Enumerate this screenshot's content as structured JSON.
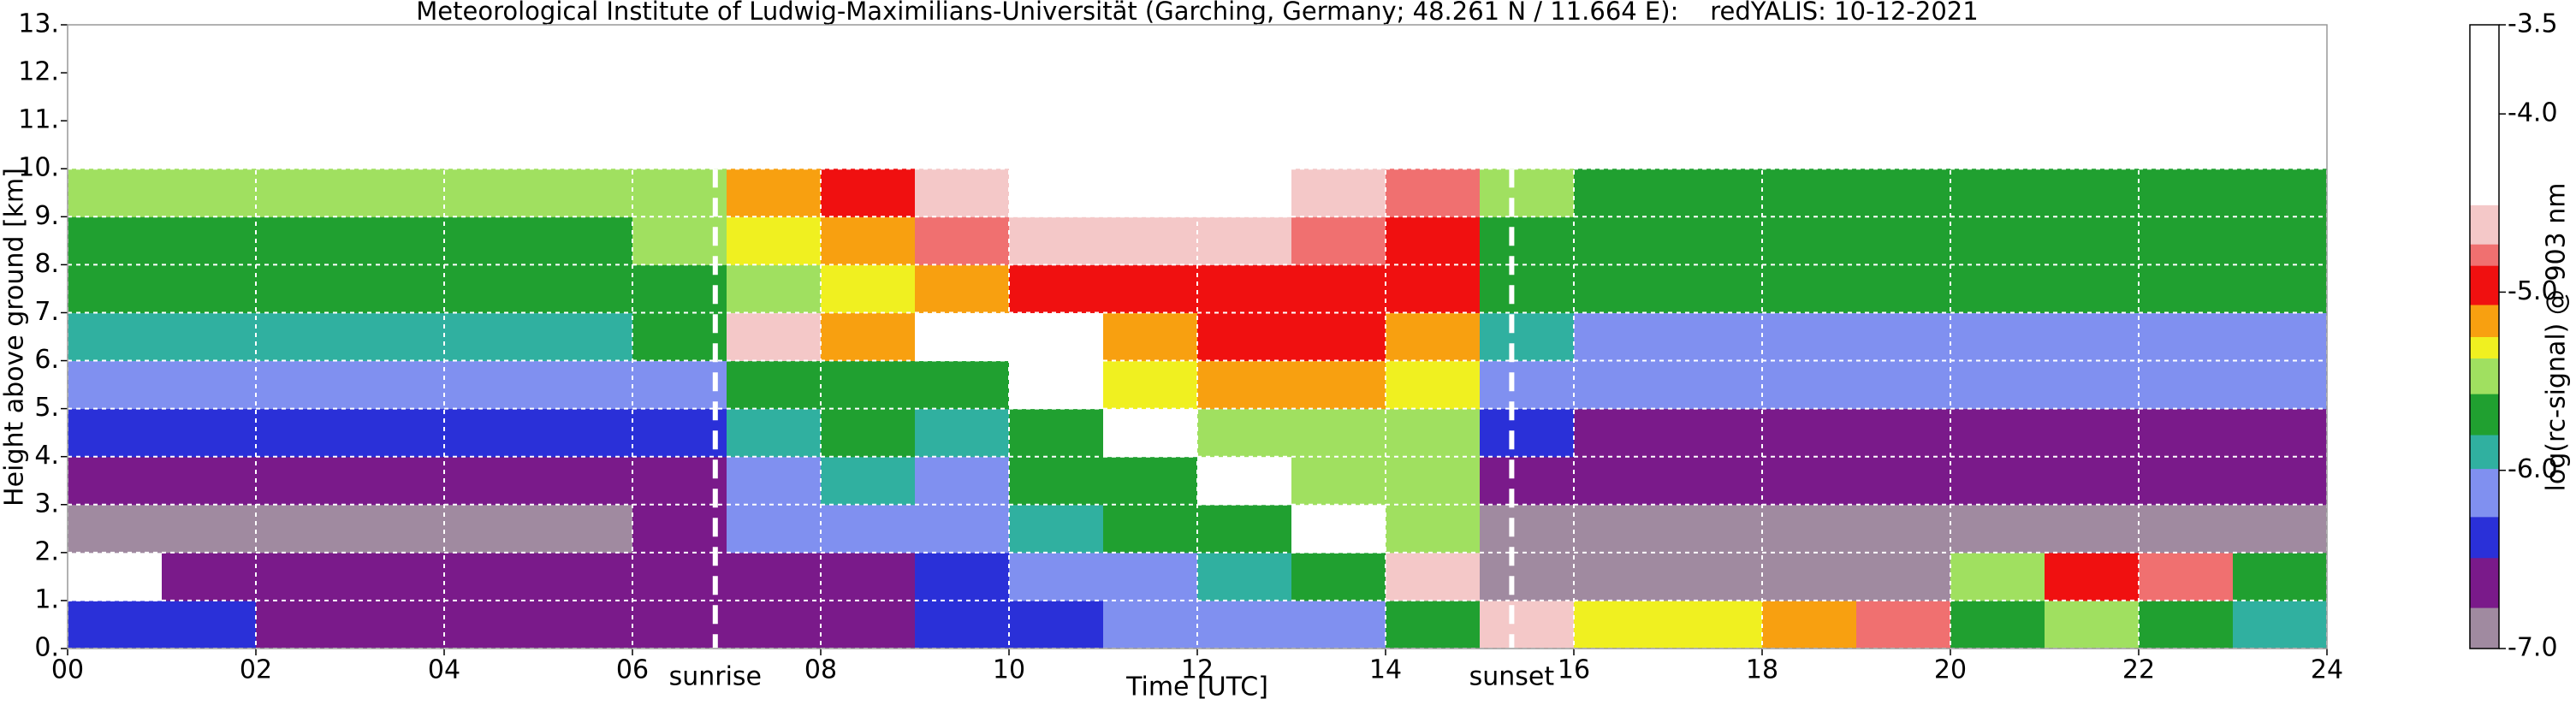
{
  "chart_data": {
    "type": "heatmap",
    "title": "Meteorological Institute of Ludwig-Maximilians-Universität (Garching, Germany; 48.261 N / 11.664 E):    redYALIS: 10-12-2021",
    "x_label": "Time [UTC]",
    "y_label": "Height above ground [km]",
    "colorbar_label": "log(rc-signal) @ 903 nm",
    "xlim": [
      0,
      24
    ],
    "xticks": [
      {
        "value": 0,
        "label": "00"
      },
      {
        "value": 2,
        "label": "02"
      },
      {
        "value": 4,
        "label": "04"
      },
      {
        "value": 6,
        "label": "06"
      },
      {
        "value": 8,
        "label": "08"
      },
      10,
      12,
      14,
      16,
      18,
      20,
      22,
      24
    ],
    "ylim": [
      0,
      13
    ],
    "yticks": [
      {
        "value": 0,
        "label": "0."
      },
      {
        "value": 1,
        "label": "1."
      },
      {
        "value": 2,
        "label": "2."
      },
      {
        "value": 3,
        "label": "3."
      },
      {
        "value": 4,
        "label": "4."
      },
      {
        "value": 5,
        "label": "5."
      },
      {
        "value": 6,
        "label": "6."
      },
      {
        "value": 7,
        "label": "7."
      },
      {
        "value": 8,
        "label": "8."
      },
      {
        "value": 9,
        "label": "9."
      },
      {
        "value": 10,
        "label": "10."
      },
      {
        "value": 11,
        "label": "11."
      },
      {
        "value": 12,
        "label": "12."
      },
      {
        "value": 13,
        "label": "13."
      }
    ],
    "clim": [
      -7,
      -3.5
    ],
    "cticks": [
      {
        "value": -7,
        "label": "-7.0"
      },
      {
        "value": -6,
        "label": "-6.0"
      },
      {
        "value": -5,
        "label": "-5.0"
      },
      {
        "value": -4,
        "label": "-4.0"
      },
      -3.5
    ],
    "color_steps": [
      -7,
      -6.77,
      -6.49,
      -6.26,
      -5.99,
      -5.8,
      -5.57,
      -5.37,
      -5.25,
      -5.07,
      -4.85,
      -4.73,
      -4.51
    ],
    "colors": [
      "#a08aa0",
      "#7a1a8a",
      "#2a30d8",
      "#8090f0",
      "#30b0a0",
      "#20a030",
      "#a0e060",
      "#f0f020",
      "#f8a010",
      "#f01010",
      "#f07070",
      "#f4c8c8",
      "#ffffff"
    ],
    "grid": true,
    "x_edges": [
      0,
      1,
      2,
      3,
      4,
      5,
      6,
      7,
      8,
      9,
      10,
      11,
      12,
      13,
      14,
      15,
      16,
      17,
      18,
      19,
      20,
      21,
      22,
      23,
      24
    ],
    "y_edges": [
      0,
      1,
      2,
      3,
      4,
      5,
      6,
      7,
      8,
      9,
      10
    ],
    "z": [
      [
        -6.4,
        -6.4,
        -6.5,
        -6.5,
        -6.6,
        -6.6,
        -6.6,
        -6.6,
        -6.5,
        -6.4,
        -6.3,
        -6.2,
        -6.1,
        -6.0,
        -5.7,
        -4.6,
        -5.3,
        -5.3,
        -5.1,
        -4.8,
        -5.6,
        -5.4,
        -5.6,
        -5.9
      ],
      [
        -4.3,
        -6.6,
        -6.7,
        -6.7,
        -6.7,
        -6.7,
        -6.7,
        -6.6,
        -6.5,
        -6.3,
        -6.2,
        -6.0,
        -5.9,
        -5.6,
        -4.6,
        -6.9,
        -7.0,
        -7.0,
        -7.0,
        -6.8,
        -5.4,
        -5.0,
        -4.8,
        -5.8
      ],
      [
        -6.8,
        -6.8,
        -6.8,
        -6.8,
        -6.8,
        -6.8,
        -6.7,
        -6.2,
        -6.0,
        -6.1,
        -5.9,
        -5.8,
        -5.6,
        -4.3,
        -5.4,
        -6.8,
        -6.9,
        -6.9,
        -6.9,
        -6.9,
        -6.8,
        -6.8,
        -6.8,
        -6.9
      ],
      [
        -6.6,
        -6.6,
        -6.6,
        -6.6,
        -6.6,
        -6.6,
        -6.5,
        -6.0,
        -5.9,
        -6.0,
        -5.8,
        -5.6,
        -4.2,
        -5.5,
        -5.5,
        -6.6,
        -6.7,
        -6.7,
        -6.7,
        -6.7,
        -6.7,
        -6.7,
        -6.7,
        -6.7
      ],
      [
        -6.4,
        -6.4,
        -6.4,
        -6.4,
        -6.4,
        -6.4,
        -6.3,
        -5.9,
        -5.8,
        -5.9,
        -5.7,
        -4.2,
        -5.4,
        -5.4,
        -5.4,
        -6.4,
        -6.5,
        -6.5,
        -6.5,
        -6.5,
        -6.5,
        -6.5,
        -6.5,
        -6.5
      ],
      [
        -6.1,
        -6.1,
        -6.1,
        -6.1,
        -6.1,
        -6.1,
        -6.0,
        -5.8,
        -5.7,
        -5.7,
        -4.2,
        -5.3,
        -5.2,
        -5.2,
        -5.3,
        -6.1,
        -6.2,
        -6.2,
        -6.2,
        -6.2,
        -6.2,
        -6.2,
        -6.2,
        -6.2
      ],
      [
        -5.9,
        -5.9,
        -5.9,
        -5.9,
        -5.9,
        -5.9,
        -5.8,
        -4.6,
        -5.2,
        -4.3,
        -4.4,
        -5.1,
        -5.0,
        -5.0,
        -5.1,
        -5.9,
        -6.0,
        -6.0,
        -6.0,
        -6.0,
        -6.0,
        -6.0,
        -6.0,
        -6.0
      ],
      [
        -5.7,
        -5.7,
        -5.7,
        -5.7,
        -5.7,
        -5.7,
        -5.6,
        -5.4,
        -5.3,
        -5.1,
        -4.9,
        -4.9,
        -4.9,
        -4.9,
        -5.0,
        -5.7,
        -5.8,
        -5.8,
        -5.8,
        -5.8,
        -5.8,
        -5.8,
        -5.8,
        -5.8
      ],
      [
        -5.6,
        -5.6,
        -5.6,
        -5.6,
        -5.6,
        -5.6,
        -5.5,
        -5.3,
        -5.1,
        -4.8,
        -4.6,
        -4.6,
        -4.7,
        -4.8,
        -4.9,
        -5.6,
        -5.7,
        -5.7,
        -5.7,
        -5.7,
        -5.7,
        -5.7,
        -5.7,
        -5.7
      ],
      [
        -5.5,
        -5.5,
        -5.5,
        -5.5,
        -5.5,
        -5.5,
        -5.4,
        -5.2,
        -5.0,
        -4.6,
        -4.4,
        -4.4,
        -4.5,
        -4.7,
        -4.8,
        -5.5,
        -5.6,
        -5.6,
        -5.6,
        -5.6,
        -5.6,
        -5.6,
        -5.6,
        -5.6
      ]
    ],
    "annotations": [
      {
        "x": 6.88,
        "text": "sunrise"
      },
      {
        "x": 15.34,
        "text": "sunset"
      }
    ]
  }
}
